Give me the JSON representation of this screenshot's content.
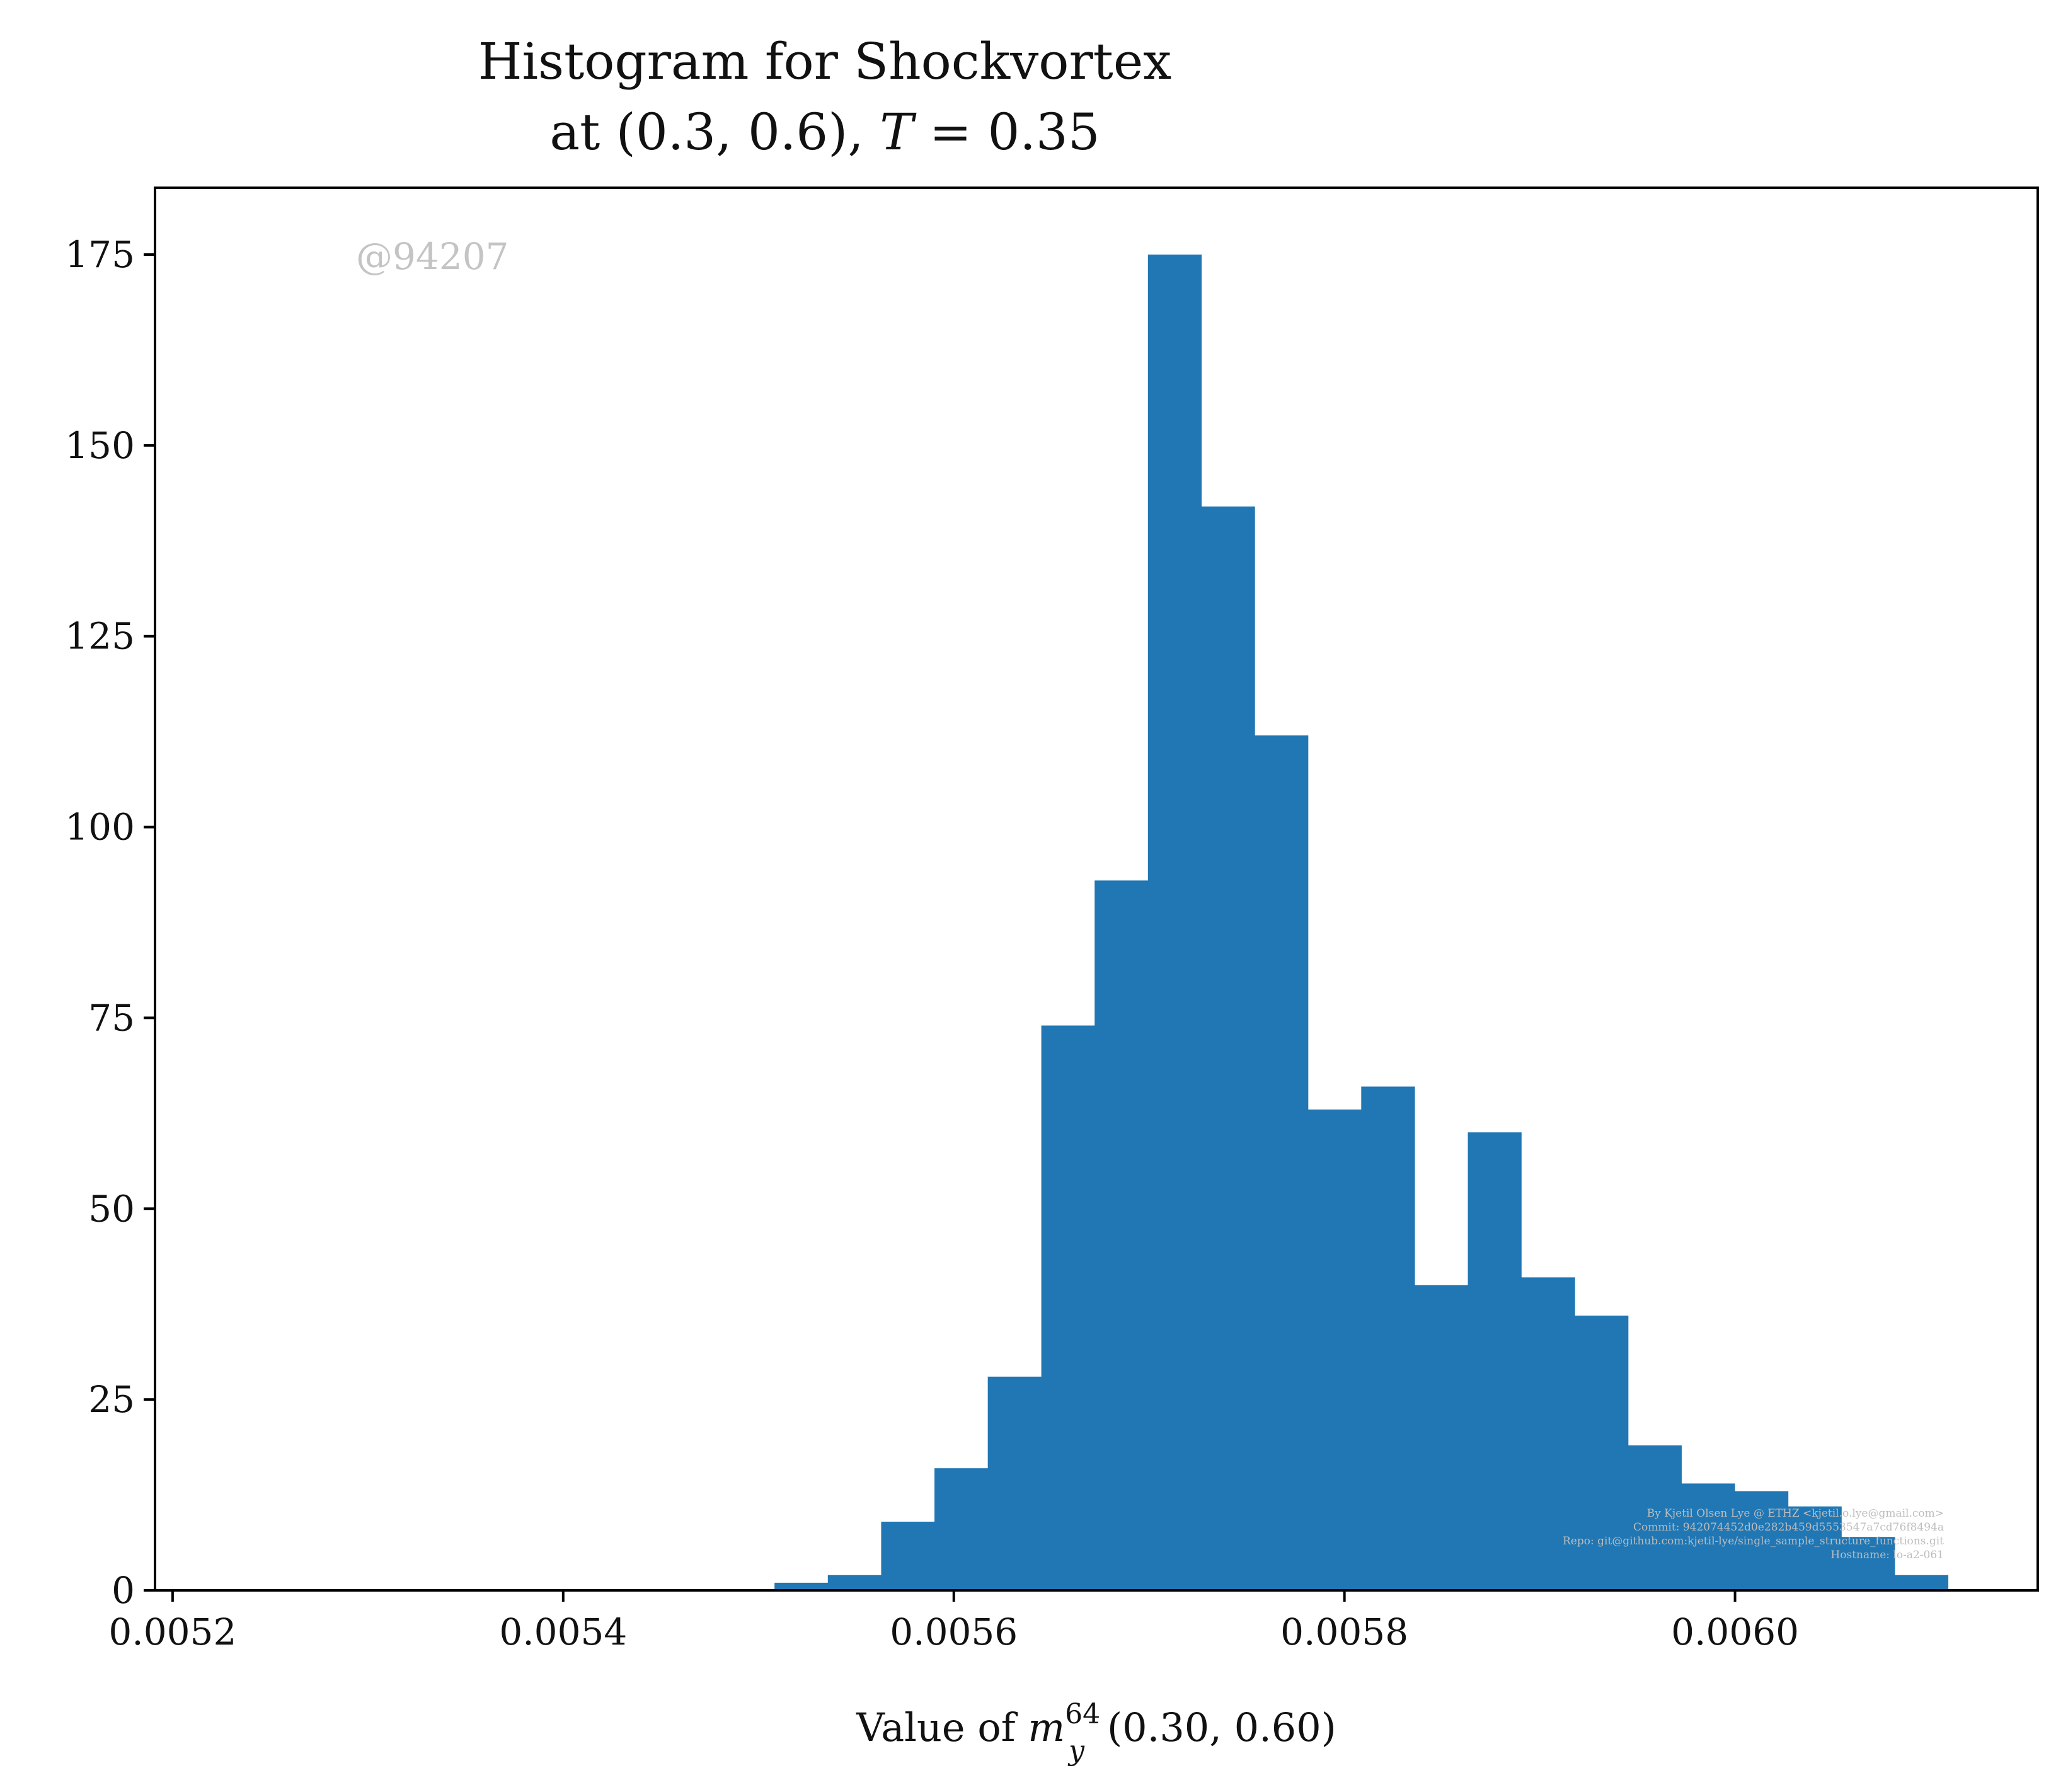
{
  "title_line1": "Histogram for Shockvortex",
  "title_line2": "at (0.3, 0.6), T = 0.35",
  "watermark": "@94207",
  "credits": [
    "By Kjetil Olsen Lye @ ETHZ <kjetil.o.lye@gmail.com>",
    "Commit: 942074452d0e282b459d5553547a7cd76f8494a",
    "Repo: git@github.com:kjetil-lye/single_sample_structure_functions.git",
    "Hostname: lo-a2-061"
  ],
  "colors": {
    "bar": "#2077b4",
    "axis": "#000000",
    "watermark": "#c4c4c4"
  },
  "chart_data": {
    "type": "bar",
    "title": "Histogram for Shockvortex at (0.3, 0.6), T = 0.35",
    "xlabel": "Value of m_y^64(0.30, 0.60)",
    "ylabel": "",
    "xlim": [
      0.005191,
      0.006155
    ],
    "ylim": [
      0,
      183.75
    ],
    "x_ticks": [
      {
        "value": 0.0052,
        "label": "0.0052"
      },
      {
        "value": 0.0054,
        "label": "0.0054"
      },
      {
        "value": 0.0056,
        "label": "0.0056"
      },
      {
        "value": 0.0058,
        "label": "0.0058"
      },
      {
        "value": 0.006,
        "label": "0.0060"
      }
    ],
    "y_ticks": [
      {
        "value": 0,
        "label": "0"
      },
      {
        "value": 25,
        "label": "25"
      },
      {
        "value": 50,
        "label": "50"
      },
      {
        "value": 75,
        "label": "75"
      },
      {
        "value": 100,
        "label": "100"
      },
      {
        "value": 125,
        "label": "125"
      },
      {
        "value": 150,
        "label": "150"
      },
      {
        "value": 175,
        "label": "175"
      }
    ],
    "bin_width": 2.731e-05,
    "bin_starts": [
      0.0055082,
      0.0055355,
      0.0055628,
      0.0055901,
      0.0056174,
      0.0056448,
      0.0056721,
      0.0056994,
      0.0057267,
      0.005754,
      0.0057813,
      0.0058086,
      0.0058359,
      0.0058632,
      0.0058906,
      0.0059179,
      0.0059452,
      0.0059725,
      0.0059998,
      0.0060271,
      0.0060544,
      0.0060817
    ],
    "values": [
      1,
      2,
      9,
      16,
      28,
      74,
      93,
      175,
      142,
      112,
      63,
      66,
      40,
      60,
      41,
      36,
      19,
      14,
      13,
      11,
      7,
      2
    ],
    "grid": false,
    "legend": "none"
  }
}
